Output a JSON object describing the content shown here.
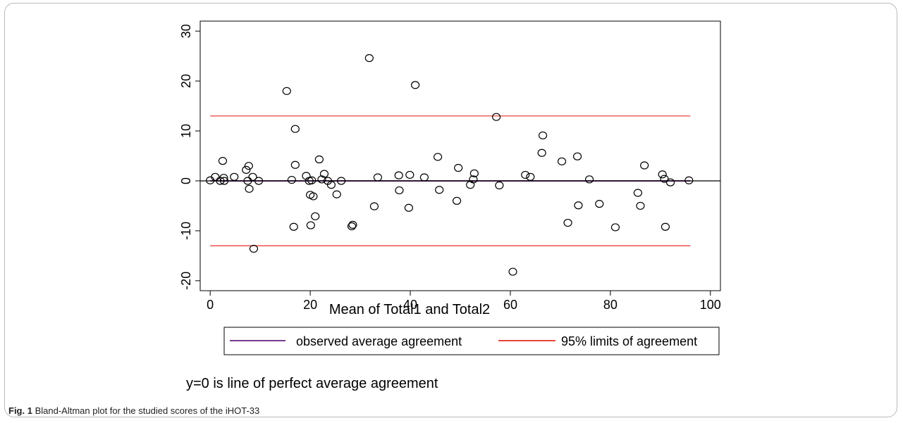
{
  "caption": {
    "label": "Fig. 1",
    "text": "Bland-Altman plot for the studied scores of the iHOT-33"
  },
  "note": "y=0 is line of perfect average agreement",
  "colors": {
    "mean_line": "#7a3b8f",
    "limits_line": "#e8443a",
    "zero_line": "#000000",
    "points": "#000000"
  },
  "chart_data": {
    "type": "scatter",
    "title": "",
    "xlabel": "Mean of Total1 and Total2",
    "ylabel": "",
    "xlim": [
      -2,
      102
    ],
    "ylim": [
      -22,
      32
    ],
    "x_ticks": [
      0,
      20,
      40,
      60,
      80,
      100
    ],
    "y_ticks": [
      -20,
      -10,
      0,
      10,
      20,
      30
    ],
    "grid": false,
    "legend_position": "bottom",
    "reference_lines": [
      {
        "name": "observed average agreement",
        "y": 0,
        "x_range": [
          0,
          96
        ],
        "color": "#7a3b8f"
      },
      {
        "name": "95% limits of agreement",
        "y": 13,
        "x_range": [
          0,
          96
        ],
        "color": "#e8443a"
      },
      {
        "name": "95% limits of agreement",
        "y": -13,
        "x_range": [
          0,
          96
        ],
        "color": "#e8443a"
      },
      {
        "name": "",
        "y": 0,
        "x_range": [
          -2,
          102
        ],
        "color": "#000000"
      }
    ],
    "legend": [
      {
        "label": "observed average agreement",
        "color": "#7a3b8f"
      },
      {
        "label": "95% limits of agreement",
        "color": "#e8443a"
      }
    ],
    "series": [
      {
        "points": [
          [
            0,
            0.1
          ],
          [
            1,
            0.8
          ],
          [
            2,
            0
          ],
          [
            2.5,
            4
          ],
          [
            2.7,
            0.6
          ],
          [
            2.8,
            0
          ],
          [
            4.8,
            0.8
          ],
          [
            7.2,
            2.2
          ],
          [
            7.5,
            0
          ],
          [
            7.7,
            3
          ],
          [
            7.8,
            -1.6
          ],
          [
            8.5,
            0.8
          ],
          [
            8.7,
            -13.6
          ],
          [
            9.7,
            0
          ],
          [
            15.3,
            18
          ],
          [
            16.3,
            0.2
          ],
          [
            16.7,
            -9.2
          ],
          [
            17,
            3.2
          ],
          [
            17,
            10.4
          ],
          [
            19.2,
            1
          ],
          [
            19.8,
            0
          ],
          [
            20,
            -2.8
          ],
          [
            20.1,
            -8.9
          ],
          [
            20.3,
            0.1
          ],
          [
            20.6,
            -3.1
          ],
          [
            21,
            -7.1
          ],
          [
            21.8,
            4.3
          ],
          [
            22.3,
            0.3
          ],
          [
            22.8,
            1.4
          ],
          [
            23.5,
            0
          ],
          [
            24.2,
            -0.8
          ],
          [
            25.3,
            -2.7
          ],
          [
            26.2,
            0
          ],
          [
            28.3,
            -9.1
          ],
          [
            28.5,
            -8.8
          ],
          [
            31.8,
            24.6
          ],
          [
            32.8,
            -5.1
          ],
          [
            33.5,
            0.7
          ],
          [
            37.7,
            1.1
          ],
          [
            37.8,
            -1.9
          ],
          [
            39.7,
            -5.4
          ],
          [
            39.9,
            1.2
          ],
          [
            41,
            19.2
          ],
          [
            42.8,
            0.7
          ],
          [
            45.5,
            4.8
          ],
          [
            45.8,
            -1.8
          ],
          [
            49.3,
            -4
          ],
          [
            49.6,
            2.6
          ],
          [
            52,
            -0.8
          ],
          [
            52.6,
            0.3
          ],
          [
            52.8,
            1.5
          ],
          [
            57.2,
            12.8
          ],
          [
            57.8,
            -0.9
          ],
          [
            60.5,
            -18.2
          ],
          [
            63,
            1.2
          ],
          [
            64,
            0.8
          ],
          [
            66.3,
            5.6
          ],
          [
            66.5,
            9.1
          ],
          [
            70.3,
            3.9
          ],
          [
            71.5,
            -8.4
          ],
          [
            73.4,
            4.9
          ],
          [
            73.6,
            -4.9
          ],
          [
            75.8,
            0.3
          ],
          [
            77.8,
            -4.6
          ],
          [
            81,
            -9.3
          ],
          [
            85.5,
            -2.4
          ],
          [
            86,
            -5
          ],
          [
            86.8,
            3.1
          ],
          [
            90.4,
            1.3
          ],
          [
            90.8,
            0.4
          ],
          [
            91,
            -9.2
          ],
          [
            92,
            -0.3
          ],
          [
            95.7,
            0.1
          ]
        ]
      }
    ]
  }
}
